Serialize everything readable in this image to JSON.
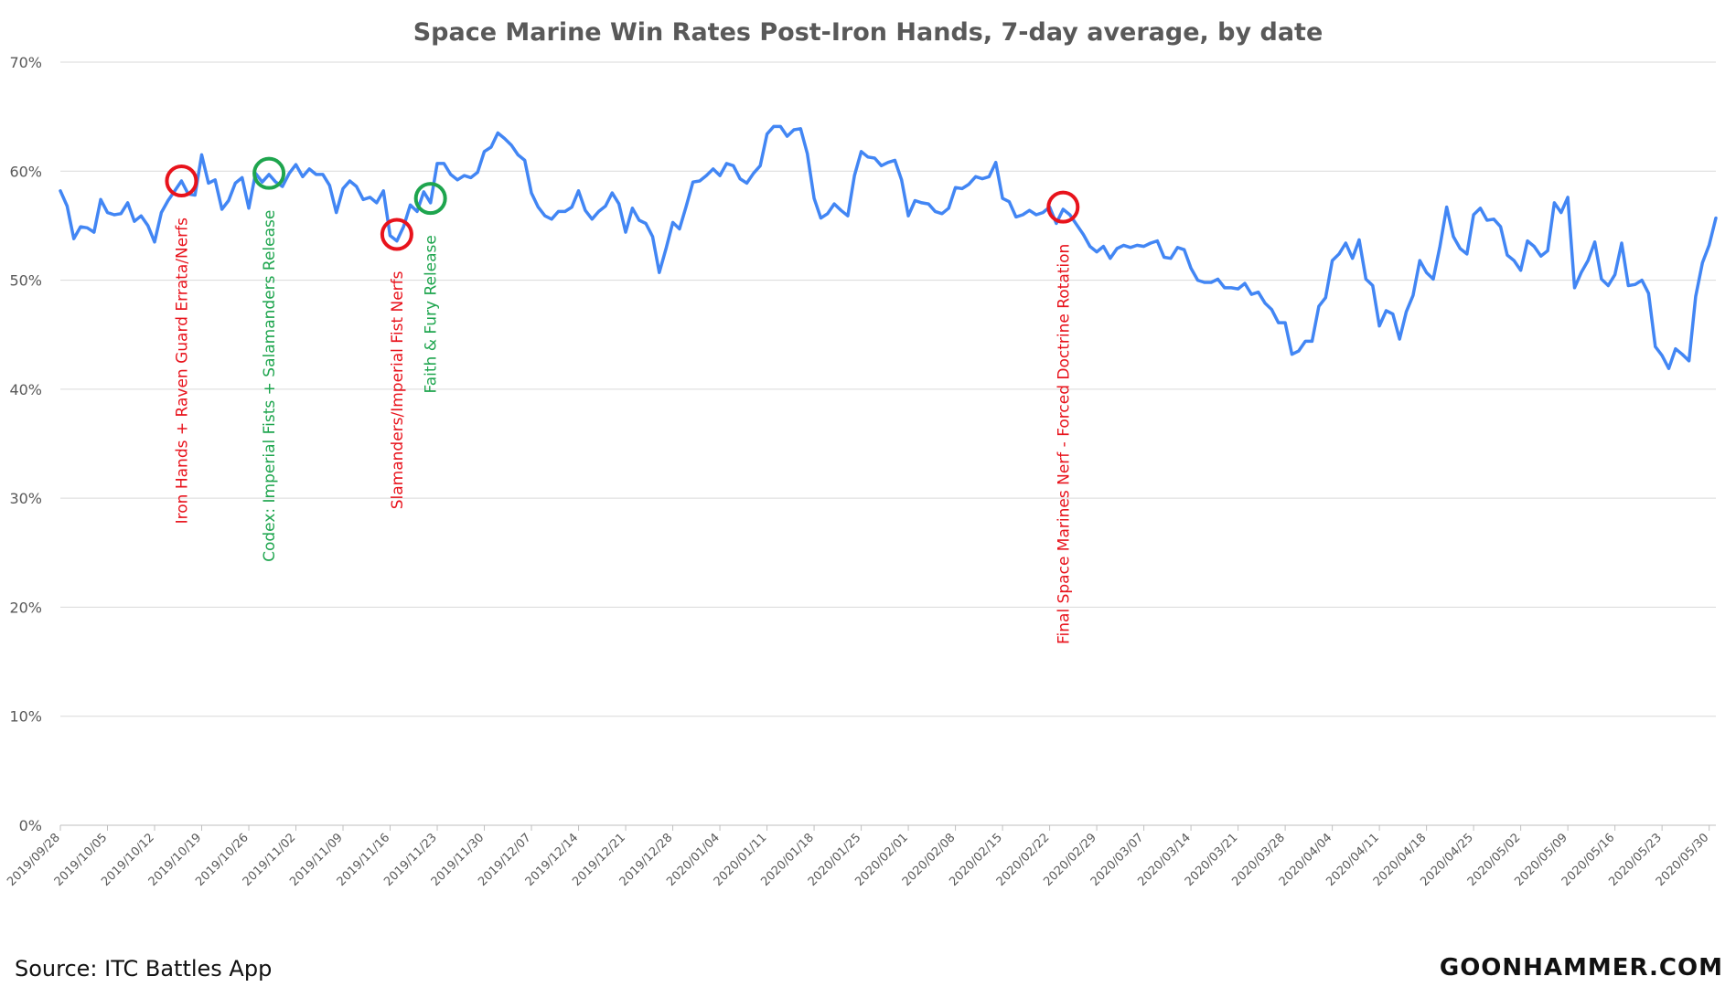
{
  "chart_data": {
    "type": "line",
    "title": "Space Marine Win Rates Post-Iron Hands, 7-day average, by date",
    "xlabel": "",
    "ylabel": "",
    "ylim": [
      0,
      70
    ],
    "y_ticks": [
      "0%",
      "10%",
      "20%",
      "30%",
      "40%",
      "50%",
      "60%",
      "70%"
    ],
    "x_tick_labels": [
      "2019/09/28",
      "2019/10/05",
      "2019/10/12",
      "2019/10/19",
      "2019/10/26",
      "2019/11/02",
      "2019/11/09",
      "2019/11/16",
      "2019/11/23",
      "2019/11/30",
      "2019/12/07",
      "2019/12/14",
      "2019/12/21",
      "2019/12/28",
      "2020/01/04",
      "2020/01/11",
      "2020/01/18",
      "2020/01/25",
      "2020/02/01",
      "2020/02/08",
      "2020/02/15",
      "2020/02/22",
      "2020/02/29",
      "2020/03/07",
      "2020/03/14",
      "2020/03/21",
      "2020/03/28",
      "2020/04/04",
      "2020/04/11",
      "2020/04/18",
      "2020/04/25",
      "2020/05/02",
      "2020/05/09",
      "2020/05/16",
      "2020/05/23",
      "2020/05/30"
    ],
    "grid": true,
    "series": [
      {
        "color": "#4286f4",
        "points": [
          [
            "2019/09/28",
            58.2
          ],
          [
            "2019/09/29",
            56.8
          ],
          [
            "2019/09/30",
            53.8
          ],
          [
            "2019/10/01",
            54.9
          ],
          [
            "2019/10/02",
            54.8
          ],
          [
            "2019/10/03",
            54.4
          ],
          [
            "2019/10/04",
            57.4
          ],
          [
            "2019/10/05",
            56.2
          ],
          [
            "2019/10/06",
            56.0
          ],
          [
            "2019/10/07",
            56.1
          ],
          [
            "2019/10/08",
            57.1
          ],
          [
            "2019/10/09",
            55.4
          ],
          [
            "2019/10/10",
            55.9
          ],
          [
            "2019/10/11",
            55.0
          ],
          [
            "2019/10/12",
            53.5
          ],
          [
            "2019/10/13",
            56.2
          ],
          [
            "2019/10/14",
            57.3
          ],
          [
            "2019/10/15",
            58.2
          ],
          [
            "2019/10/16",
            59.1
          ],
          [
            "2019/10/17",
            57.9
          ],
          [
            "2019/10/18",
            57.8
          ],
          [
            "2019/10/19",
            61.5
          ],
          [
            "2019/10/20",
            58.9
          ],
          [
            "2019/10/21",
            59.2
          ],
          [
            "2019/10/22",
            56.5
          ],
          [
            "2019/10/23",
            57.3
          ],
          [
            "2019/10/24",
            58.9
          ],
          [
            "2019/10/25",
            59.4
          ],
          [
            "2019/10/26",
            56.6
          ],
          [
            "2019/10/27",
            59.8
          ],
          [
            "2019/10/28",
            59.0
          ],
          [
            "2019/10/29",
            59.7
          ],
          [
            "2019/10/30",
            59.0
          ],
          [
            "2019/10/31",
            58.6
          ],
          [
            "2019/11/01",
            59.8
          ],
          [
            "2019/11/02",
            60.6
          ],
          [
            "2019/11/03",
            59.5
          ],
          [
            "2019/11/04",
            60.2
          ],
          [
            "2019/11/05",
            59.7
          ],
          [
            "2019/11/06",
            59.7
          ],
          [
            "2019/11/07",
            58.7
          ],
          [
            "2019/11/08",
            56.2
          ],
          [
            "2019/11/09",
            58.4
          ],
          [
            "2019/11/10",
            59.1
          ],
          [
            "2019/11/11",
            58.6
          ],
          [
            "2019/11/12",
            57.4
          ],
          [
            "2019/11/13",
            57.6
          ],
          [
            "2019/11/14",
            57.1
          ],
          [
            "2019/11/15",
            58.2
          ],
          [
            "2019/11/16",
            54.1
          ],
          [
            "2019/11/17",
            53.6
          ],
          [
            "2019/11/18",
            54.9
          ],
          [
            "2019/11/19",
            56.9
          ],
          [
            "2019/11/20",
            56.3
          ],
          [
            "2019/11/21",
            58.1
          ],
          [
            "2019/11/22",
            57.1
          ],
          [
            "2019/11/23",
            60.7
          ],
          [
            "2019/11/24",
            60.7
          ],
          [
            "2019/11/25",
            59.7
          ],
          [
            "2019/11/26",
            59.2
          ],
          [
            "2019/11/27",
            59.6
          ],
          [
            "2019/11/28",
            59.4
          ],
          [
            "2019/11/29",
            59.9
          ],
          [
            "2019/11/30",
            61.8
          ],
          [
            "2019/12/01",
            62.2
          ],
          [
            "2019/12/02",
            63.5
          ],
          [
            "2019/12/03",
            63.0
          ],
          [
            "2019/12/04",
            62.4
          ],
          [
            "2019/12/05",
            61.5
          ],
          [
            "2019/12/06",
            61.0
          ],
          [
            "2019/12/07",
            58.0
          ],
          [
            "2019/12/08",
            56.7
          ],
          [
            "2019/12/09",
            55.9
          ],
          [
            "2019/12/10",
            55.6
          ],
          [
            "2019/12/11",
            56.3
          ],
          [
            "2019/12/12",
            56.3
          ],
          [
            "2019/12/13",
            56.7
          ],
          [
            "2019/12/14",
            58.2
          ],
          [
            "2019/12/15",
            56.4
          ],
          [
            "2019/12/16",
            55.6
          ],
          [
            "2019/12/17",
            56.3
          ],
          [
            "2019/12/18",
            56.8
          ],
          [
            "2019/12/19",
            58.0
          ],
          [
            "2019/12/20",
            57.0
          ],
          [
            "2019/12/21",
            54.4
          ],
          [
            "2019/12/22",
            56.6
          ],
          [
            "2019/12/23",
            55.5
          ],
          [
            "2019/12/24",
            55.2
          ],
          [
            "2019/12/25",
            54.0
          ],
          [
            "2019/12/26",
            50.7
          ],
          [
            "2019/12/27",
            52.9
          ],
          [
            "2019/12/28",
            55.3
          ],
          [
            "2019/12/29",
            54.7
          ],
          [
            "2019/12/30",
            56.8
          ],
          [
            "2019/12/31",
            59.0
          ],
          [
            "2020/01/01",
            59.1
          ],
          [
            "2020/01/02",
            59.6
          ],
          [
            "2020/01/03",
            60.2
          ],
          [
            "2020/01/04",
            59.6
          ],
          [
            "2020/01/05",
            60.7
          ],
          [
            "2020/01/06",
            60.5
          ],
          [
            "2020/01/07",
            59.3
          ],
          [
            "2020/01/08",
            58.9
          ],
          [
            "2020/01/09",
            59.8
          ],
          [
            "2020/01/10",
            60.5
          ],
          [
            "2020/01/11",
            63.4
          ],
          [
            "2020/01/12",
            64.1
          ],
          [
            "2020/01/13",
            64.1
          ],
          [
            "2020/01/14",
            63.2
          ],
          [
            "2020/01/15",
            63.8
          ],
          [
            "2020/01/16",
            63.9
          ],
          [
            "2020/01/17",
            61.6
          ],
          [
            "2020/01/18",
            57.5
          ],
          [
            "2020/01/19",
            55.7
          ],
          [
            "2020/01/20",
            56.1
          ],
          [
            "2020/01/21",
            57.0
          ],
          [
            "2020/01/22",
            56.4
          ],
          [
            "2020/01/23",
            55.9
          ],
          [
            "2020/01/24",
            59.6
          ],
          [
            "2020/01/25",
            61.8
          ],
          [
            "2020/01/26",
            61.3
          ],
          [
            "2020/01/27",
            61.2
          ],
          [
            "2020/01/28",
            60.5
          ],
          [
            "2020/01/29",
            60.8
          ],
          [
            "2020/01/30",
            61.0
          ],
          [
            "2020/01/31",
            59.2
          ],
          [
            "2020/02/01",
            55.9
          ],
          [
            "2020/02/02",
            57.3
          ],
          [
            "2020/02/03",
            57.1
          ],
          [
            "2020/02/04",
            57.0
          ],
          [
            "2020/02/05",
            56.3
          ],
          [
            "2020/02/06",
            56.1
          ],
          [
            "2020/02/07",
            56.6
          ],
          [
            "2020/02/08",
            58.5
          ],
          [
            "2020/02/09",
            58.4
          ],
          [
            "2020/02/10",
            58.8
          ],
          [
            "2020/02/11",
            59.5
          ],
          [
            "2020/02/12",
            59.3
          ],
          [
            "2020/02/13",
            59.5
          ],
          [
            "2020/02/14",
            60.8
          ],
          [
            "2020/02/15",
            57.5
          ],
          [
            "2020/02/16",
            57.2
          ],
          [
            "2020/02/17",
            55.8
          ],
          [
            "2020/02/18",
            56.0
          ],
          [
            "2020/02/19",
            56.4
          ],
          [
            "2020/02/20",
            56.0
          ],
          [
            "2020/02/21",
            56.2
          ],
          [
            "2020/02/22",
            56.7
          ],
          [
            "2020/02/23",
            55.2
          ],
          [
            "2020/02/24",
            56.5
          ],
          [
            "2020/02/25",
            56.0
          ],
          [
            "2020/02/26",
            55.1
          ],
          [
            "2020/02/27",
            54.2
          ],
          [
            "2020/02/28",
            53.1
          ],
          [
            "2020/02/29",
            52.6
          ],
          [
            "2020/03/01",
            53.1
          ],
          [
            "2020/03/02",
            52.0
          ],
          [
            "2020/03/03",
            52.9
          ],
          [
            "2020/03/04",
            53.2
          ],
          [
            "2020/03/05",
            53.0
          ],
          [
            "2020/03/06",
            53.2
          ],
          [
            "2020/03/07",
            53.1
          ],
          [
            "2020/03/08",
            53.4
          ],
          [
            "2020/03/09",
            53.6
          ],
          [
            "2020/03/10",
            52.1
          ],
          [
            "2020/03/11",
            52.0
          ],
          [
            "2020/03/12",
            53.0
          ],
          [
            "2020/03/13",
            52.8
          ],
          [
            "2020/03/14",
            51.1
          ],
          [
            "2020/03/15",
            50.0
          ],
          [
            "2020/03/16",
            49.8
          ],
          [
            "2020/03/17",
            49.8
          ],
          [
            "2020/03/18",
            50.1
          ],
          [
            "2020/03/19",
            49.3
          ],
          [
            "2020/03/20",
            49.3
          ],
          [
            "2020/03/21",
            49.2
          ],
          [
            "2020/03/22",
            49.7
          ],
          [
            "2020/03/23",
            48.7
          ],
          [
            "2020/03/24",
            48.9
          ],
          [
            "2020/03/25",
            47.9
          ],
          [
            "2020/03/26",
            47.3
          ],
          [
            "2020/03/27",
            46.1
          ],
          [
            "2020/03/28",
            46.1
          ],
          [
            "2020/03/29",
            43.2
          ],
          [
            "2020/03/30",
            43.5
          ],
          [
            "2020/03/31",
            44.4
          ],
          [
            "2020/04/01",
            44.4
          ],
          [
            "2020/04/02",
            47.6
          ],
          [
            "2020/04/03",
            48.4
          ],
          [
            "2020/04/04",
            51.8
          ],
          [
            "2020/04/05",
            52.4
          ],
          [
            "2020/04/06",
            53.4
          ],
          [
            "2020/04/07",
            52.0
          ],
          [
            "2020/04/08",
            53.7
          ],
          [
            "2020/04/09",
            50.1
          ],
          [
            "2020/04/10",
            49.5
          ],
          [
            "2020/04/11",
            45.8
          ],
          [
            "2020/04/12",
            47.2
          ],
          [
            "2020/04/13",
            46.9
          ],
          [
            "2020/04/14",
            44.6
          ],
          [
            "2020/04/15",
            47.1
          ],
          [
            "2020/04/16",
            48.6
          ],
          [
            "2020/04/17",
            51.8
          ],
          [
            "2020/04/18",
            50.7
          ],
          [
            "2020/04/19",
            50.1
          ],
          [
            "2020/04/20",
            53.1
          ],
          [
            "2020/04/21",
            56.7
          ],
          [
            "2020/04/22",
            54.0
          ],
          [
            "2020/04/23",
            52.9
          ],
          [
            "2020/04/24",
            52.4
          ],
          [
            "2020/04/25",
            56.0
          ],
          [
            "2020/04/26",
            56.6
          ],
          [
            "2020/04/27",
            55.5
          ],
          [
            "2020/04/28",
            55.6
          ],
          [
            "2020/04/29",
            54.9
          ],
          [
            "2020/04/30",
            52.3
          ],
          [
            "2020/05/01",
            51.8
          ],
          [
            "2020/05/02",
            50.9
          ],
          [
            "2020/05/03",
            53.6
          ],
          [
            "2020/05/04",
            53.1
          ],
          [
            "2020/05/05",
            52.2
          ],
          [
            "2020/05/06",
            52.7
          ],
          [
            "2020/05/07",
            57.1
          ],
          [
            "2020/05/08",
            56.2
          ],
          [
            "2020/05/09",
            57.6
          ],
          [
            "2020/05/10",
            49.3
          ],
          [
            "2020/05/11",
            50.7
          ],
          [
            "2020/05/12",
            51.8
          ],
          [
            "2020/05/13",
            53.5
          ],
          [
            "2020/05/14",
            50.1
          ],
          [
            "2020/05/15",
            49.5
          ],
          [
            "2020/05/16",
            50.5
          ],
          [
            "2020/05/17",
            53.4
          ],
          [
            "2020/05/18",
            49.5
          ],
          [
            "2020/05/19",
            49.6
          ],
          [
            "2020/05/20",
            50.0
          ],
          [
            "2020/05/21",
            48.8
          ],
          [
            "2020/05/22",
            43.9
          ],
          [
            "2020/05/23",
            43.1
          ],
          [
            "2020/05/24",
            41.9
          ],
          [
            "2020/05/25",
            43.7
          ],
          [
            "2020/05/26",
            43.2
          ],
          [
            "2020/05/27",
            42.6
          ],
          [
            "2020/05/28",
            48.5
          ],
          [
            "2020/05/29",
            51.6
          ],
          [
            "2020/05/30",
            53.2
          ],
          [
            "2020/05/31",
            55.7
          ]
        ]
      }
    ],
    "annotations": [
      {
        "text": "Iron Hands + Raven Guard Errata/Nerfs",
        "date": "2019/10/16",
        "value": 59.1,
        "color": "#e8131c"
      },
      {
        "text": "Codex: Imperial Fists + Salamanders Release",
        "date": "2019/10/29",
        "value": 59.8,
        "color": "#1ea54e"
      },
      {
        "text": "Slamanders/Imperial Fist Nerfs",
        "date": "2019/11/17",
        "value": 54.2,
        "color": "#e8131c"
      },
      {
        "text": "Faith & Fury Release",
        "date": "2019/11/22",
        "value": 57.5,
        "color": "#1ea54e"
      },
      {
        "text": "Final Space Marines Nerf - Forced Doctrine Rotation",
        "date": "2020/02/24",
        "value": 56.7,
        "color": "#e8131c"
      }
    ]
  },
  "footer": {
    "source": "Source: ITC Battles App",
    "brand": "GOONHAMMER.COM"
  }
}
